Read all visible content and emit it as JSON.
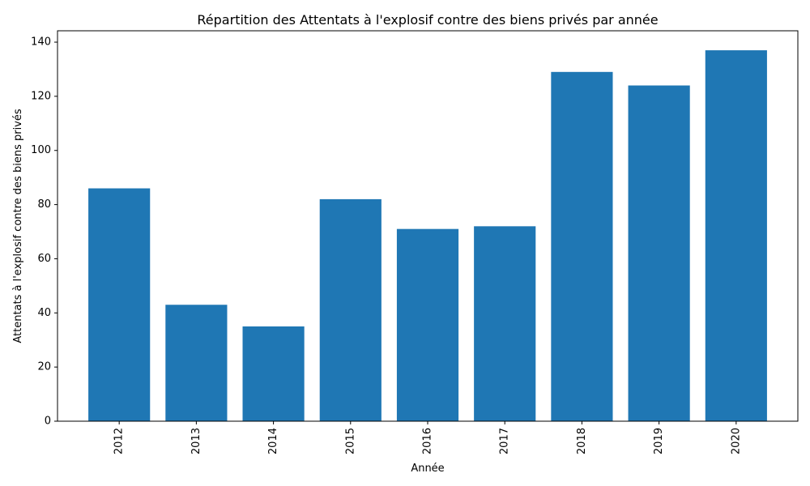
{
  "chart_data": {
    "type": "bar",
    "title": "Répartition des Attentats à l'explosif contre des biens privés par année",
    "xlabel": "Année",
    "ylabel": "Attentats à l'explosif contre des biens privés",
    "categories": [
      "2012",
      "2013",
      "2014",
      "2015",
      "2016",
      "2017",
      "2018",
      "2019",
      "2020"
    ],
    "values": [
      86,
      43,
      35,
      82,
      71,
      72,
      129,
      124,
      137
    ],
    "ylim": [
      0,
      140
    ],
    "yticks": [
      0,
      20,
      40,
      60,
      80,
      100,
      120,
      140
    ],
    "bar_color": "#1f77b4",
    "grid": false,
    "legend": "none"
  }
}
